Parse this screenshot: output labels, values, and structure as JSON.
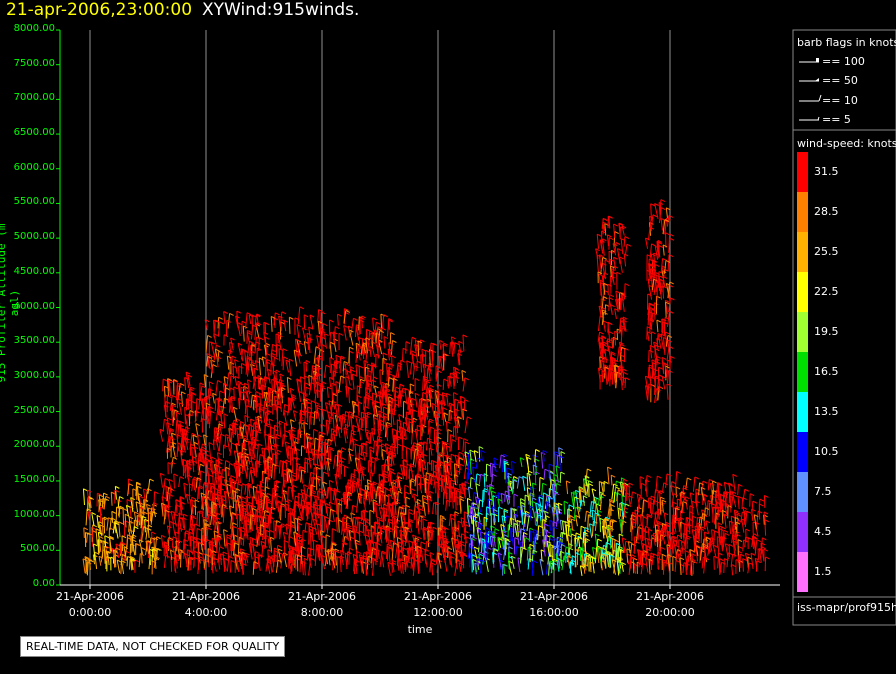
{
  "header": {
    "datetime": "21-apr-2006,23:00:00",
    "product": "XYWind:915winds."
  },
  "chart_data": {
    "type": "scatter",
    "title": "21-apr-2006,23:00:00 XYWind:915winds.",
    "xlabel": "time",
    "ylabel": "915 Profiler Altitude (m agl)",
    "ylim": [
      0,
      8000
    ],
    "xlim_hours": [
      -1.3,
      24
    ],
    "y_ticks": [
      "0.00",
      "500.00",
      "1000.00",
      "1500.00",
      "2000.00",
      "2500.00",
      "3000.00",
      "3500.00",
      "4000.00",
      "4500.00",
      "5000.00",
      "5500.00",
      "6000.00",
      "6500.00",
      "7000.00",
      "7500.00",
      "8000.00"
    ],
    "x_ticks": [
      {
        "hour": 0,
        "date": "21-Apr-2006",
        "time": "0:00:00"
      },
      {
        "hour": 4,
        "date": "21-Apr-2006",
        "time": "4:00:00"
      },
      {
        "hour": 8,
        "date": "21-Apr-2006",
        "time": "8:00:00"
      },
      {
        "hour": 12,
        "date": "21-Apr-2006",
        "time": "12:00:00"
      },
      {
        "hour": 16,
        "date": "21-Apr-2006",
        "time": "16:00:00"
      },
      {
        "hour": 20,
        "date": "21-Apr-2006",
        "time": "20:00:00"
      }
    ],
    "grid": "vertical",
    "wind_speed_legend_title": "wind-speed: knots",
    "color_scale": [
      {
        "value": "31.5",
        "color": "#ff0000"
      },
      {
        "value": "28.5",
        "color": "#ff8000"
      },
      {
        "value": "25.5",
        "color": "#ffb000"
      },
      {
        "value": "22.5",
        "color": "#ffff00"
      },
      {
        "value": "19.5",
        "color": "#a0ff30"
      },
      {
        "value": "16.5",
        "color": "#00e000"
      },
      {
        "value": "13.5",
        "color": "#00ffff"
      },
      {
        "value": "10.5",
        "color": "#0000ff"
      },
      {
        "value": "7.5",
        "color": "#6090ff"
      },
      {
        "value": "4.5",
        "color": "#9030ff"
      },
      {
        "value": "1.5",
        "color": "#ff70ff"
      }
    ],
    "barb_legend_title": "barb flags in knots",
    "barb_flags": [
      "== 100",
      "== 50",
      "== 10",
      "== 5"
    ],
    "data_coverage": [
      {
        "hours": [
          -0.2,
          2.3
        ],
        "alt_top": 1350,
        "dominant": "orange"
      },
      {
        "hours": [
          2.5,
          4.0
        ],
        "alt_top": 2900,
        "dominant": "red"
      },
      {
        "hours": [
          4.0,
          10.5
        ],
        "alt_top": 3800,
        "dominant": "red"
      },
      {
        "hours": [
          10.5,
          13.0
        ],
        "alt_top": 3400,
        "dominant": "red"
      },
      {
        "hours": [
          13.0,
          16.3
        ],
        "alt_top": 1800,
        "dominant": "blue-green"
      },
      {
        "hours": [
          16.3,
          18.4
        ],
        "alt_top": 1500,
        "dominant": "yellow"
      },
      {
        "hours": [
          18.4,
          23.3
        ],
        "alt_top": 1400,
        "dominant": "red"
      },
      {
        "hours": [
          17.5,
          18.5
        ],
        "alt_top": 5200,
        "alt_bottom": 2800,
        "dominant": "red"
      },
      {
        "hours": [
          19.2,
          20.0
        ],
        "alt_top": 5400,
        "alt_bottom": 2600,
        "dominant": "red"
      }
    ]
  },
  "footer": {
    "qc_notice": "REAL-TIME DATA, NOT CHECKED FOR QUALITY",
    "source": "iss-mapr/prof915h"
  }
}
